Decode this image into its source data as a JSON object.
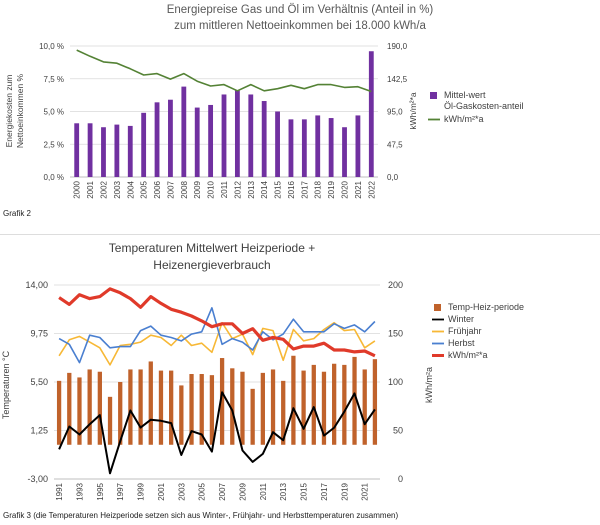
{
  "chart_data": [
    {
      "type": "bar",
      "title_line1": "Energiepreise Gas und Öl im Verhältnis (Anteil in %)",
      "title_line2": "zum mittleren Nettoeinkommen bei 18.000 kWh/a",
      "ylabel_left_line1": "Energiekosten zum",
      "ylabel_left_line2": "Nettoeinkommen %",
      "ylabel_right": "kWh/m²*a",
      "left_ticks": [
        "10,0 %",
        "7,5 %",
        "5,0 %",
        "2,5 %",
        "0,0 %"
      ],
      "right_ticks": [
        "190,0",
        "142,5",
        "95,0",
        "47,5",
        "0,0"
      ],
      "ylim_left": [
        0,
        10
      ],
      "ylim_right": [
        0,
        190
      ],
      "categories": [
        "2000",
        "2001",
        "2002",
        "2003",
        "2004",
        "2005",
        "2006",
        "2007",
        "2008",
        "2009",
        "2010",
        "2011",
        "2012",
        "2013",
        "2014",
        "2015",
        "2016",
        "2017",
        "2018",
        "2019",
        "2020",
        "2021",
        "2022"
      ],
      "series": [
        {
          "name": "Mittel-wert Öl-Gaskosten-anteil",
          "kind": "bar",
          "axis": "left",
          "color": "#7030a0",
          "values": [
            4.1,
            4.1,
            3.8,
            4.0,
            3.9,
            4.9,
            5.7,
            5.9,
            6.9,
            5.3,
            5.5,
            6.3,
            6.6,
            6.3,
            5.8,
            5.0,
            4.4,
            4.4,
            4.7,
            4.5,
            3.8,
            4.7,
            9.6
          ]
        },
        {
          "name": "kWh/m²*a",
          "kind": "line",
          "axis": "right",
          "color": "#548235",
          "values": [
            184,
            175,
            167,
            165,
            157,
            148,
            150,
            142,
            150,
            139,
            132,
            134,
            125,
            134,
            125,
            128,
            133,
            128,
            134,
            134,
            130,
            131,
            124
          ]
        }
      ],
      "caption": "Grafik 2"
    },
    {
      "type": "bar",
      "title_line1": "Temperaturen Mittelwert Heizperiode +",
      "title_line2": "Heizenergieverbrauch",
      "ylabel_left": "Temperaturen °C",
      "ylabel_right": "kWh/m²a",
      "left_ticks": [
        "14,00",
        "9,75",
        "5,50",
        "1,25",
        "-3,00"
      ],
      "right_ticks": [
        "200",
        "150",
        "100",
        "50",
        "0"
      ],
      "ylim_left": [
        -3,
        14
      ],
      "ylim_right": [
        0,
        200
      ],
      "x_tick_labels": [
        "1991",
        "1993",
        "1995",
        "1997",
        "1999",
        "2001",
        "2003",
        "2005",
        "2007",
        "2009",
        "2011",
        "2013",
        "2015",
        "2017",
        "2019",
        "2021"
      ],
      "categories": [
        "1991",
        "1992",
        "1993",
        "1994",
        "1995",
        "1996",
        "1997",
        "1998",
        "1999",
        "2000",
        "2001",
        "2002",
        "2003",
        "2004",
        "2005",
        "2006",
        "2007",
        "2008",
        "2009",
        "2010",
        "2011",
        "2012",
        "2013",
        "2014",
        "2015",
        "2016",
        "2017",
        "2018",
        "2019",
        "2020",
        "2021",
        "2022"
      ],
      "series": [
        {
          "name": "Temp-Heiz-periode",
          "kind": "bar",
          "axis": "left",
          "color": "#c0622b",
          "values": [
            5.6,
            6.3,
            5.9,
            6.6,
            6.4,
            4.2,
            5.5,
            6.6,
            6.6,
            7.3,
            6.5,
            6.5,
            5.2,
            6.2,
            6.2,
            6.1,
            7.6,
            6.7,
            6.4,
            4.9,
            6.3,
            6.6,
            5.6,
            7.8,
            6.5,
            7.0,
            6.4,
            7.1,
            7.0,
            7.7,
            6.6,
            7.5
          ]
        },
        {
          "name": "Winter",
          "kind": "line",
          "axis": "left",
          "color": "#000000",
          "values": [
            -0.4,
            1.6,
            0.9,
            1.8,
            2.6,
            -2.5,
            0.3,
            3.0,
            1.5,
            2.2,
            2.1,
            1.9,
            -0.9,
            1.2,
            0.9,
            -0.6,
            4.6,
            3.0,
            -0.5,
            -1.5,
            -0.8,
            1.1,
            0.4,
            3.2,
            1.4,
            3.3,
            0.8,
            1.5,
            2.9,
            4.5,
            1.8,
            3.1
          ]
        },
        {
          "name": "Frühjahr",
          "kind": "line",
          "axis": "left",
          "color": "#f7b836",
          "values": [
            7.8,
            9.2,
            9.5,
            9.0,
            8.5,
            7.0,
            8.7,
            8.8,
            9.0,
            9.6,
            9.4,
            8.7,
            9.6,
            8.7,
            8.9,
            8.1,
            10.7,
            9.3,
            9.7,
            7.9,
            10.2,
            10.0,
            7.4,
            10.1,
            9.1,
            9.3,
            10.1,
            10.7,
            10.0,
            10.1,
            8.5,
            9.1
          ]
        },
        {
          "name": "Herbst",
          "kind": "line",
          "axis": "left",
          "color": "#4a7fd0",
          "values": [
            9.3,
            8.8,
            7.2,
            9.6,
            9.4,
            8.5,
            8.6,
            8.6,
            10.0,
            10.4,
            9.6,
            9.4,
            9.1,
            9.7,
            9.9,
            12.0,
            8.8,
            9.3,
            9.0,
            8.3,
            9.9,
            9.2,
            9.7,
            11.0,
            9.9,
            9.9,
            9.9,
            10.6,
            10.2,
            10.5,
            9.9,
            10.8
          ]
        },
        {
          "name": "kWh/m²*a",
          "kind": "line",
          "axis": "right",
          "color": "#e03a2a",
          "values": [
            187,
            180,
            190,
            186,
            188,
            196,
            192,
            186,
            177,
            188,
            181,
            175,
            172,
            168,
            163,
            157,
            160,
            160,
            150,
            155,
            143,
            146,
            144,
            134,
            137,
            137,
            140,
            133,
            133,
            131,
            132,
            127
          ]
        }
      ],
      "caption": "Grafik 3 (die Temperaturen Heizperiode setzen sich aus Winter-, Frühjahr- und Herbsttemperaturen zusammen)"
    }
  ]
}
